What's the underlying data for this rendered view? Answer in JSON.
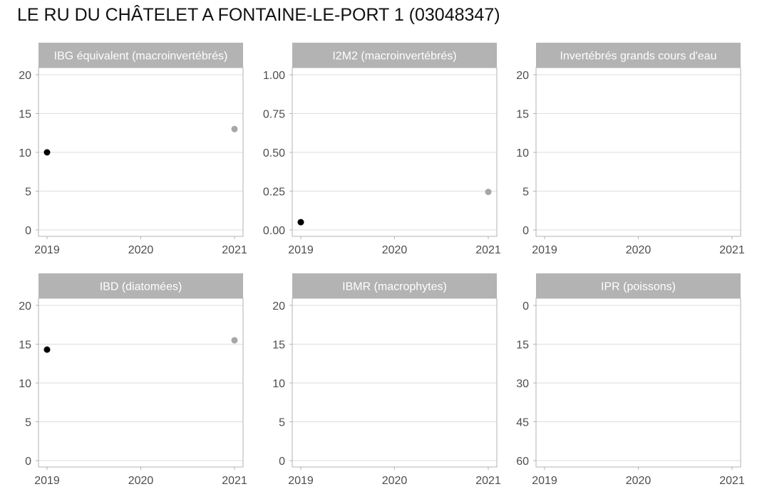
{
  "title": "LE RU DU CHÂTELET A FONTAINE-LE-PORT 1 (03048347)",
  "colors": {
    "strip_bg": "#b3b3b3",
    "strip_text": "#ffffff",
    "panel_border": "#b3b3b3",
    "grid": "#dedede",
    "tick_text": "#4d4d4d",
    "point_dark": "#000000",
    "point_light": "#a6a6a6"
  },
  "chart_data": [
    {
      "type": "scatter",
      "title": "IBG équivalent (macroinvertébrés)",
      "x_ticks": [
        "2019",
        "2020",
        "2021"
      ],
      "xlim": [
        2019,
        2021
      ],
      "y_ticks": [
        "0",
        "5",
        "10",
        "15",
        "20"
      ],
      "y_tick_values": [
        0,
        5,
        10,
        15,
        20
      ],
      "ylim": [
        0,
        20
      ],
      "y_reversed": false,
      "grid": true,
      "points": [
        {
          "x": 2019,
          "y": 10,
          "color": "#000000"
        },
        {
          "x": 2021,
          "y": 13,
          "color": "#a6a6a6"
        }
      ]
    },
    {
      "type": "scatter",
      "title": "I2M2 (macroinvertébrés)",
      "x_ticks": [
        "2019",
        "2020",
        "2021"
      ],
      "xlim": [
        2019,
        2021
      ],
      "y_ticks": [
        "0.00",
        "0.25",
        "0.50",
        "0.75",
        "1.00"
      ],
      "y_tick_values": [
        0,
        0.25,
        0.5,
        0.75,
        1.0
      ],
      "ylim": [
        0,
        1
      ],
      "y_reversed": false,
      "grid": true,
      "points": [
        {
          "x": 2019,
          "y": 0.05,
          "color": "#000000"
        },
        {
          "x": 2021,
          "y": 0.245,
          "color": "#a6a6a6"
        }
      ]
    },
    {
      "type": "scatter",
      "title": "Invertébrés grands cours d'eau",
      "x_ticks": [
        "2019",
        "2020",
        "2021"
      ],
      "xlim": [
        2019,
        2021
      ],
      "y_ticks": [
        "0",
        "5",
        "10",
        "15",
        "20"
      ],
      "y_tick_values": [
        0,
        5,
        10,
        15,
        20
      ],
      "ylim": [
        0,
        20
      ],
      "y_reversed": false,
      "grid": true,
      "points": []
    },
    {
      "type": "scatter",
      "title": "IBD (diatomées)",
      "x_ticks": [
        "2019",
        "2020",
        "2021"
      ],
      "xlim": [
        2019,
        2021
      ],
      "y_ticks": [
        "0",
        "5",
        "10",
        "15",
        "20"
      ],
      "y_tick_values": [
        0,
        5,
        10,
        15,
        20
      ],
      "ylim": [
        0,
        20
      ],
      "y_reversed": false,
      "grid": true,
      "points": [
        {
          "x": 2019,
          "y": 14.3,
          "color": "#000000"
        },
        {
          "x": 2021,
          "y": 15.5,
          "color": "#a6a6a6"
        }
      ]
    },
    {
      "type": "scatter",
      "title": "IBMR (macrophytes)",
      "x_ticks": [
        "2019",
        "2020",
        "2021"
      ],
      "xlim": [
        2019,
        2021
      ],
      "y_ticks": [
        "0",
        "5",
        "10",
        "15",
        "20"
      ],
      "y_tick_values": [
        0,
        5,
        10,
        15,
        20
      ],
      "ylim": [
        0,
        20
      ],
      "y_reversed": false,
      "grid": true,
      "points": []
    },
    {
      "type": "scatter",
      "title": "IPR (poissons)",
      "x_ticks": [
        "2019",
        "2020",
        "2021"
      ],
      "xlim": [
        2019,
        2021
      ],
      "y_ticks": [
        "0",
        "15",
        "30",
        "45",
        "60"
      ],
      "y_tick_values": [
        0,
        15,
        30,
        45,
        60
      ],
      "ylim": [
        0,
        60
      ],
      "y_reversed": true,
      "grid": true,
      "points": []
    }
  ]
}
